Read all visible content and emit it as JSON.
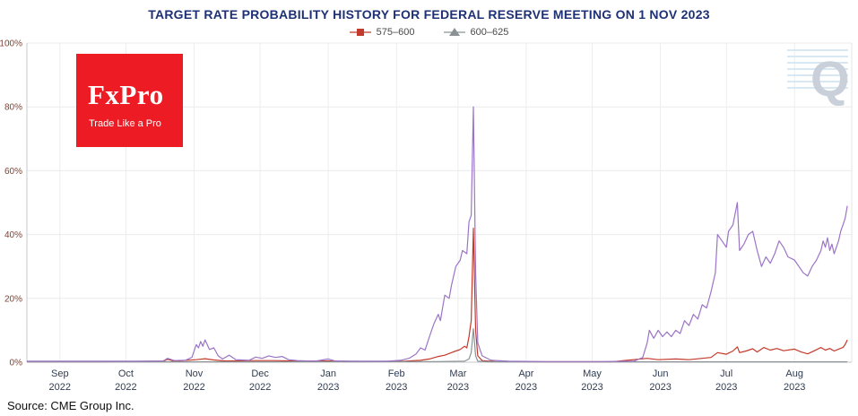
{
  "header": {
    "title": "TARGET RATE PROBABILITY HISTORY FOR FEDERAL RESERVE MEETING ON 1 NOV 2023"
  },
  "legend": {
    "items": [
      {
        "label": "575–600",
        "color": "#c23a2b",
        "marker": "square"
      },
      {
        "label": "600–625",
        "color": "#8a9295",
        "marker": "triangle"
      }
    ]
  },
  "logo": {
    "name": "FxPro",
    "tagline": "Trade Like a Pro",
    "bg_color": "#ed1c24"
  },
  "watermark": {
    "letter": "Q"
  },
  "footer": {
    "source": "Source: CME Group Inc."
  },
  "chart_data": {
    "type": "line",
    "title": "TARGET RATE PROBABILITY HISTORY FOR FEDERAL RESERVE MEETING ON 1 NOV 2023",
    "xlabel": "",
    "ylabel": "",
    "grid": true,
    "legend_position": "top",
    "ylim": [
      0,
      100
    ],
    "x_domain": [
      "2022-08-17",
      "2023-08-27"
    ],
    "yticks": [
      {
        "value": 0,
        "label": "0%"
      },
      {
        "value": 20,
        "label": "20%"
      },
      {
        "value": 40,
        "label": "40%"
      },
      {
        "value": 60,
        "label": "60%"
      },
      {
        "value": 80,
        "label": "80%"
      },
      {
        "value": 100,
        "label": "100%"
      }
    ],
    "x_ticks": [
      {
        "date": "2022-09-01",
        "month": "Sep",
        "year": "2022"
      },
      {
        "date": "2022-10-01",
        "month": "Oct",
        "year": "2022"
      },
      {
        "date": "2022-11-01",
        "month": "Nov",
        "year": "2022"
      },
      {
        "date": "2022-12-01",
        "month": "Dec",
        "year": "2022"
      },
      {
        "date": "2023-01-01",
        "month": "Jan",
        "year": "2023"
      },
      {
        "date": "2023-02-01",
        "month": "Feb",
        "year": "2023"
      },
      {
        "date": "2023-03-01",
        "month": "Mar",
        "year": "2023"
      },
      {
        "date": "2023-04-01",
        "month": "Apr",
        "year": "2023"
      },
      {
        "date": "2023-05-01",
        "month": "May",
        "year": "2023"
      },
      {
        "date": "2023-06-01",
        "month": "Jun",
        "year": "2023"
      },
      {
        "date": "2023-07-01",
        "month": "Jul",
        "year": "2023"
      },
      {
        "date": "2023-08-01",
        "month": "Aug",
        "year": "2023"
      }
    ],
    "series": [
      {
        "id": "575-600",
        "name": "575–600",
        "color": "#c23a2b",
        "points": [
          [
            "2022-08-17",
            0.15
          ],
          [
            "2022-09-20",
            0.15
          ],
          [
            "2022-10-18",
            0.3
          ],
          [
            "2022-10-20",
            0.9
          ],
          [
            "2022-10-23",
            0.3
          ],
          [
            "2022-11-02",
            0.8
          ],
          [
            "2022-11-06",
            1.1
          ],
          [
            "2022-11-10",
            0.7
          ],
          [
            "2022-11-15",
            0.4
          ],
          [
            "2022-11-29",
            0.5
          ],
          [
            "2022-12-08",
            0.5
          ],
          [
            "2022-12-20",
            0.3
          ],
          [
            "2023-01-01",
            0.4
          ],
          [
            "2023-01-15",
            0.2
          ],
          [
            "2023-02-05",
            0.3
          ],
          [
            "2023-02-12",
            0.6
          ],
          [
            "2023-02-16",
            1
          ],
          [
            "2023-02-20",
            1.8
          ],
          [
            "2023-02-23",
            2.2
          ],
          [
            "2023-02-26",
            3
          ],
          [
            "2023-02-28",
            3.5
          ],
          [
            "2023-03-02",
            4
          ],
          [
            "2023-03-04",
            5
          ],
          [
            "2023-03-05",
            4.5
          ],
          [
            "2023-03-06",
            8
          ],
          [
            "2023-03-07",
            13
          ],
          [
            "2023-03-08",
            42
          ],
          [
            "2023-03-09",
            10
          ],
          [
            "2023-03-10",
            2
          ],
          [
            "2023-03-12",
            0.5
          ],
          [
            "2023-03-18",
            0.2
          ],
          [
            "2023-04-10",
            0.15
          ],
          [
            "2023-05-10",
            0.15
          ],
          [
            "2023-05-26",
            1.2
          ],
          [
            "2023-05-31",
            0.8
          ],
          [
            "2023-06-08",
            1
          ],
          [
            "2023-06-14",
            0.8
          ],
          [
            "2023-06-20",
            1.2
          ],
          [
            "2023-06-24",
            1.5
          ],
          [
            "2023-06-27",
            3
          ],
          [
            "2023-07-01",
            2.5
          ],
          [
            "2023-07-04",
            3.5
          ],
          [
            "2023-07-06",
            4.8
          ],
          [
            "2023-07-07",
            3
          ],
          [
            "2023-07-10",
            3.5
          ],
          [
            "2023-07-13",
            4.2
          ],
          [
            "2023-07-15",
            3.2
          ],
          [
            "2023-07-18",
            4.6
          ],
          [
            "2023-07-21",
            3.8
          ],
          [
            "2023-07-24",
            4.3
          ],
          [
            "2023-07-27",
            3.6
          ],
          [
            "2023-08-01",
            4.1
          ],
          [
            "2023-08-04",
            3.2
          ],
          [
            "2023-08-07",
            2.6
          ],
          [
            "2023-08-10",
            3.6
          ],
          [
            "2023-08-13",
            4.6
          ],
          [
            "2023-08-15",
            3.8
          ],
          [
            "2023-08-17",
            4.3
          ],
          [
            "2023-08-19",
            3.5
          ],
          [
            "2023-08-21",
            4.1
          ],
          [
            "2023-08-23",
            4.6
          ],
          [
            "2023-08-24",
            5.5
          ],
          [
            "2023-08-25",
            7
          ]
        ]
      },
      {
        "id": "600-625",
        "name": "600–625",
        "color": "#8a9295",
        "points": [
          [
            "2022-08-17",
            0.1
          ],
          [
            "2022-12-01",
            0.1
          ],
          [
            "2023-02-20",
            0.2
          ],
          [
            "2023-03-04",
            0.3
          ],
          [
            "2023-03-06",
            1
          ],
          [
            "2023-03-07",
            3
          ],
          [
            "2023-03-08",
            10.5
          ],
          [
            "2023-03-09",
            2
          ],
          [
            "2023-03-10",
            0.3
          ],
          [
            "2023-03-16",
            0.1
          ],
          [
            "2023-06-01",
            0.1
          ],
          [
            "2023-08-25",
            0.1
          ]
        ]
      },
      {
        "id": "purple",
        "name": "",
        "color": "#9b74c6",
        "points": [
          [
            "2022-08-17",
            0.3
          ],
          [
            "2022-09-10",
            0.3
          ],
          [
            "2022-10-05",
            0.3
          ],
          [
            "2022-10-18",
            0.4
          ],
          [
            "2022-10-20",
            1.2
          ],
          [
            "2022-10-23",
            0.5
          ],
          [
            "2022-10-28",
            0.6
          ],
          [
            "2022-10-31",
            1.5
          ],
          [
            "2022-11-02",
            5.5
          ],
          [
            "2022-11-03",
            4.5
          ],
          [
            "2022-11-04",
            6.5
          ],
          [
            "2022-11-05",
            5
          ],
          [
            "2022-11-06",
            7
          ],
          [
            "2022-11-08",
            4
          ],
          [
            "2022-11-10",
            4.5
          ],
          [
            "2022-11-12",
            2
          ],
          [
            "2022-11-14",
            1
          ],
          [
            "2022-11-17",
            2.2
          ],
          [
            "2022-11-20",
            0.8
          ],
          [
            "2022-11-26",
            0.6
          ],
          [
            "2022-11-29",
            1.6
          ],
          [
            "2022-12-02",
            1.2
          ],
          [
            "2022-12-05",
            2
          ],
          [
            "2022-12-08",
            1.5
          ],
          [
            "2022-12-11",
            1.8
          ],
          [
            "2022-12-14",
            0.8
          ],
          [
            "2022-12-18",
            0.5
          ],
          [
            "2022-12-26",
            0.3
          ],
          [
            "2023-01-01",
            1
          ],
          [
            "2023-01-04",
            0.4
          ],
          [
            "2023-01-15",
            0.3
          ],
          [
            "2023-01-28",
            0.3
          ],
          [
            "2023-02-03",
            0.6
          ],
          [
            "2023-02-07",
            1.3
          ],
          [
            "2023-02-10",
            2.6
          ],
          [
            "2023-02-12",
            4.5
          ],
          [
            "2023-02-14",
            3.8
          ],
          [
            "2023-02-16",
            8
          ],
          [
            "2023-02-18",
            12
          ],
          [
            "2023-02-20",
            15
          ],
          [
            "2023-02-21",
            13
          ],
          [
            "2023-02-23",
            21
          ],
          [
            "2023-02-25",
            20
          ],
          [
            "2023-02-26",
            24
          ],
          [
            "2023-02-28",
            30
          ],
          [
            "2023-03-02",
            32
          ],
          [
            "2023-03-03",
            35
          ],
          [
            "2023-03-05",
            34
          ],
          [
            "2023-03-06",
            44
          ],
          [
            "2023-03-07",
            46
          ],
          [
            "2023-03-08",
            80
          ],
          [
            "2023-03-09",
            28
          ],
          [
            "2023-03-10",
            6
          ],
          [
            "2023-03-12",
            2
          ],
          [
            "2023-03-16",
            0.6
          ],
          [
            "2023-03-24",
            0.3
          ],
          [
            "2023-04-10",
            0.2
          ],
          [
            "2023-05-05",
            0.2
          ],
          [
            "2023-05-20",
            0.3
          ],
          [
            "2023-05-24",
            1.5
          ],
          [
            "2023-05-26",
            6
          ],
          [
            "2023-05-27",
            10
          ],
          [
            "2023-05-29",
            7.5
          ],
          [
            "2023-05-31",
            10
          ],
          [
            "2023-06-02",
            8
          ],
          [
            "2023-06-04",
            9.5
          ],
          [
            "2023-06-06",
            8
          ],
          [
            "2023-06-08",
            10
          ],
          [
            "2023-06-10",
            9
          ],
          [
            "2023-06-12",
            13
          ],
          [
            "2023-06-14",
            11.5
          ],
          [
            "2023-06-16",
            15
          ],
          [
            "2023-06-18",
            13.5
          ],
          [
            "2023-06-20",
            18
          ],
          [
            "2023-06-22",
            17
          ],
          [
            "2023-06-24",
            22
          ],
          [
            "2023-06-26",
            28
          ],
          [
            "2023-06-27",
            40
          ],
          [
            "2023-06-29",
            38
          ],
          [
            "2023-07-01",
            36
          ],
          [
            "2023-07-02",
            41
          ],
          [
            "2023-07-04",
            43
          ],
          [
            "2023-07-06",
            50
          ],
          [
            "2023-07-07",
            35
          ],
          [
            "2023-07-09",
            37
          ],
          [
            "2023-07-11",
            40
          ],
          [
            "2023-07-13",
            41
          ],
          [
            "2023-07-15",
            35
          ],
          [
            "2023-07-17",
            30
          ],
          [
            "2023-07-19",
            33
          ],
          [
            "2023-07-21",
            31
          ],
          [
            "2023-07-23",
            34
          ],
          [
            "2023-07-25",
            38
          ],
          [
            "2023-07-27",
            36
          ],
          [
            "2023-07-29",
            33
          ],
          [
            "2023-08-01",
            32
          ],
          [
            "2023-08-03",
            30
          ],
          [
            "2023-08-05",
            28
          ],
          [
            "2023-08-07",
            27
          ],
          [
            "2023-08-09",
            30
          ],
          [
            "2023-08-11",
            32
          ],
          [
            "2023-08-13",
            35
          ],
          [
            "2023-08-14",
            38
          ],
          [
            "2023-08-15",
            36
          ],
          [
            "2023-08-16",
            39
          ],
          [
            "2023-08-17",
            35
          ],
          [
            "2023-08-18",
            37
          ],
          [
            "2023-08-19",
            34
          ],
          [
            "2023-08-21",
            38
          ],
          [
            "2023-08-22",
            41
          ],
          [
            "2023-08-23",
            43
          ],
          [
            "2023-08-24",
            45
          ],
          [
            "2023-08-25",
            49
          ]
        ]
      }
    ]
  }
}
